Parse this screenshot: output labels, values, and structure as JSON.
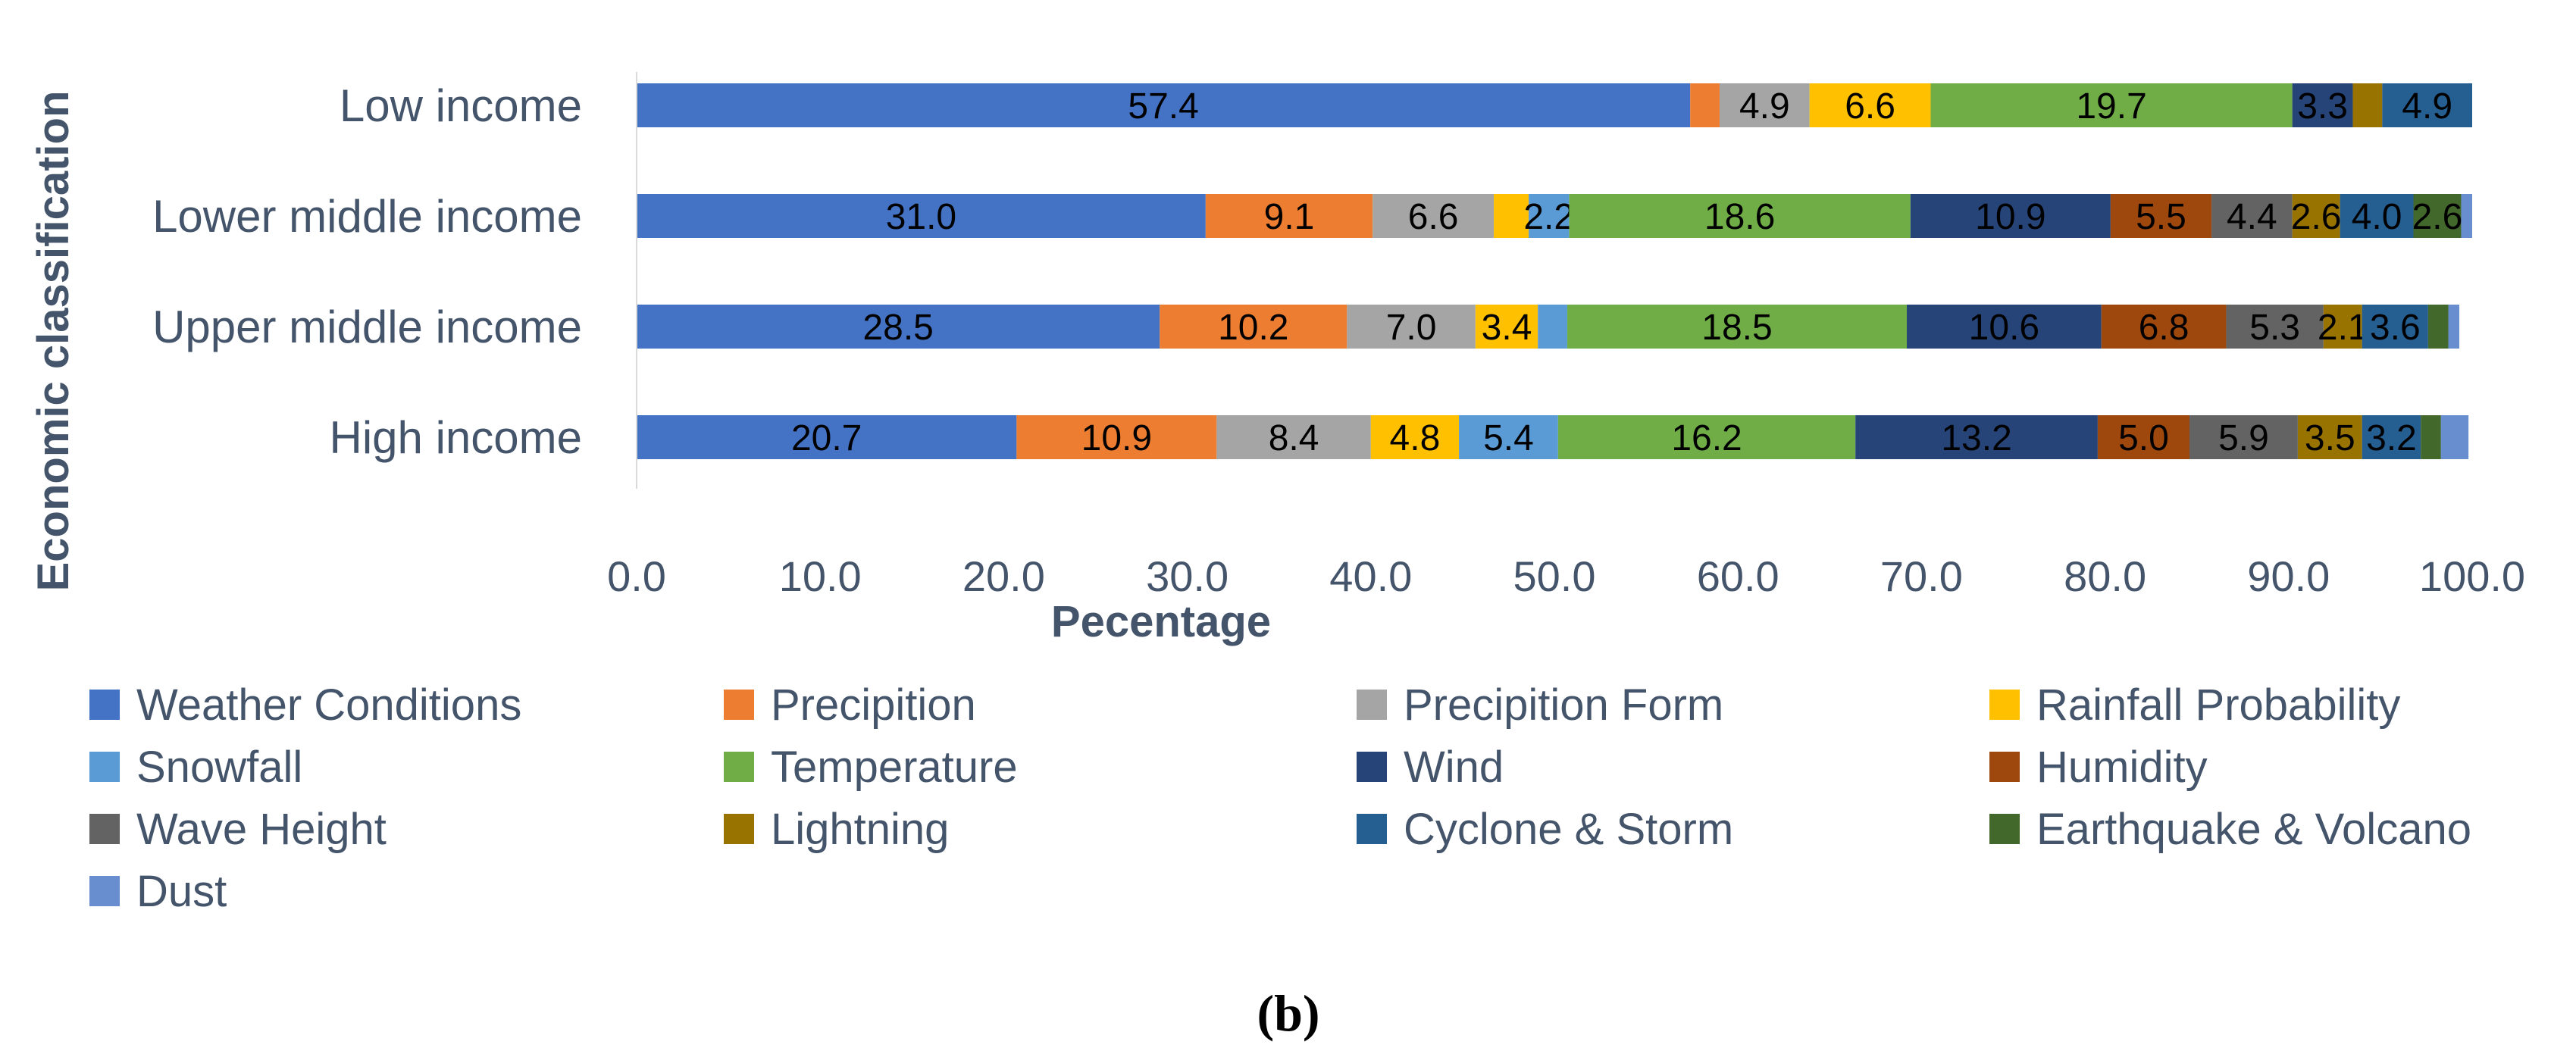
{
  "chart_data": {
    "type": "bar",
    "orientation": "horizontal",
    "stacked": true,
    "title": "",
    "xlabel": "Pecentage",
    "ylabel": "Economic classification",
    "xlim": [
      0,
      100
    ],
    "xticks": [
      "0.0",
      "10.0",
      "20.0",
      "30.0",
      "40.0",
      "50.0",
      "60.0",
      "70.0",
      "80.0",
      "90.0",
      "100.0"
    ],
    "categories": [
      "Low income",
      "Lower middle income",
      "Upper middle income",
      "High income"
    ],
    "series": [
      {
        "name": "Weather Conditions",
        "color": "#4472C4",
        "values": [
          57.4,
          31.0,
          28.5,
          20.7
        ],
        "labels": [
          "57.4",
          "31.0",
          "28.5",
          "20.7"
        ]
      },
      {
        "name": "Precipition",
        "color": "#ED7D31",
        "values": [
          1.6,
          9.1,
          10.2,
          10.9
        ],
        "labels": [
          "",
          "9.1",
          "10.2",
          "10.9"
        ]
      },
      {
        "name": "Precipition Form",
        "color": "#A5A5A5",
        "values": [
          4.9,
          6.6,
          7.0,
          8.4
        ],
        "labels": [
          "4.9",
          "6.6",
          "7.0",
          "8.4"
        ]
      },
      {
        "name": "Rainfall Probability",
        "color": "#FFC000",
        "values": [
          6.6,
          1.9,
          3.4,
          4.8
        ],
        "labels": [
          "6.6",
          "",
          "3.4",
          "4.8"
        ]
      },
      {
        "name": "Snowfall",
        "color": "#5B9BD5",
        "values": [
          0,
          2.2,
          1.6,
          5.4
        ],
        "labels": [
          "",
          "2.2",
          "",
          "5.4"
        ]
      },
      {
        "name": "Temperature",
        "color": "#70AD47",
        "values": [
          19.7,
          18.6,
          18.5,
          16.2
        ],
        "labels": [
          "19.7",
          "18.6",
          "18.5",
          "16.2"
        ]
      },
      {
        "name": "Wind",
        "color": "#264478",
        "values": [
          3.3,
          10.9,
          10.6,
          13.2
        ],
        "labels": [
          "3.3",
          "10.9",
          "10.6",
          "13.2"
        ]
      },
      {
        "name": "Humidity",
        "color": "#9E480E",
        "values": [
          0,
          5.5,
          6.8,
          5.0
        ],
        "labels": [
          "",
          "5.5",
          "6.8",
          "5.0"
        ]
      },
      {
        "name": "Wave Height",
        "color": "#636363",
        "values": [
          0,
          4.4,
          5.3,
          5.9
        ],
        "labels": [
          "",
          "4.4",
          "5.3",
          "5.9"
        ]
      },
      {
        "name": "Lightning",
        "color": "#997300",
        "values": [
          1.6,
          2.6,
          2.1,
          3.5
        ],
        "labels": [
          "",
          "2.6",
          "2.1",
          "3.5"
        ]
      },
      {
        "name": "Cyclone & Storm",
        "color": "#255E91",
        "values": [
          4.9,
          4.0,
          3.6,
          3.2
        ],
        "labels": [
          "4.9",
          "4.0",
          "3.6",
          "3.2"
        ]
      },
      {
        "name": "Earthquake & Volcano",
        "color": "#43682B",
        "values": [
          0,
          2.6,
          1.1,
          1.1
        ],
        "labels": [
          "",
          "2.6",
          "",
          ""
        ]
      },
      {
        "name": "Dust",
        "color": "#698ED0",
        "values": [
          0,
          0.6,
          0.6,
          1.5
        ],
        "labels": [
          "",
          "",
          "",
          ""
        ]
      }
    ],
    "grid": false,
    "legend_position": "bottom",
    "caption": "(b)"
  }
}
